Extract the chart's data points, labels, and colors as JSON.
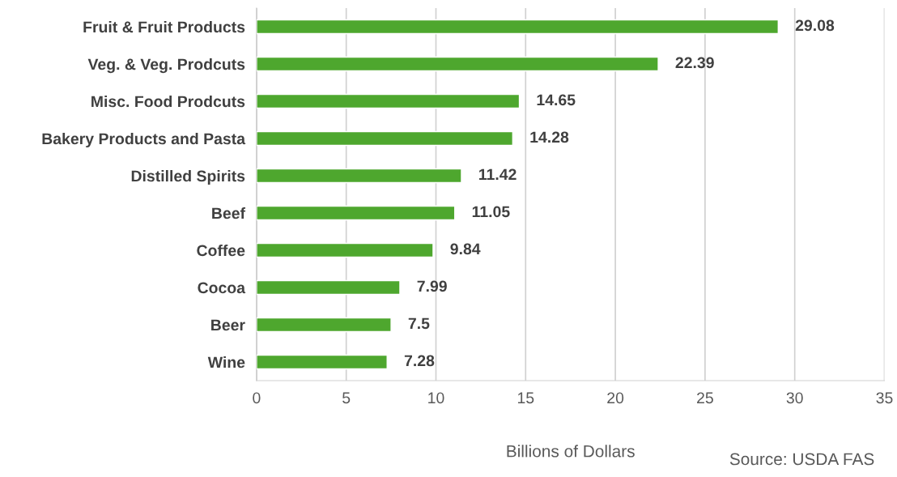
{
  "chart_data": {
    "type": "bar",
    "orientation": "horizontal",
    "categories": [
      "Fruit & Fruit Products",
      "Veg. & Veg. Prodcuts",
      "Misc. Food Prodcuts",
      "Bakery Products and Pasta",
      "Distilled Spirits",
      "Beef",
      "Coffee",
      "Cocoa",
      "Beer",
      "Wine"
    ],
    "values": [
      29.08,
      22.39,
      14.65,
      14.28,
      11.42,
      11.05,
      9.84,
      7.99,
      7.5,
      7.28
    ],
    "color": "#4ea72e",
    "xlim": [
      0,
      35
    ],
    "xticks": [
      0,
      5,
      10,
      15,
      20,
      25,
      30,
      35
    ],
    "xlabel": "Billions of Dollars",
    "annotations": [
      "Source: USDA FAS"
    ],
    "data_labels": true,
    "grid": "x",
    "legend": false
  }
}
